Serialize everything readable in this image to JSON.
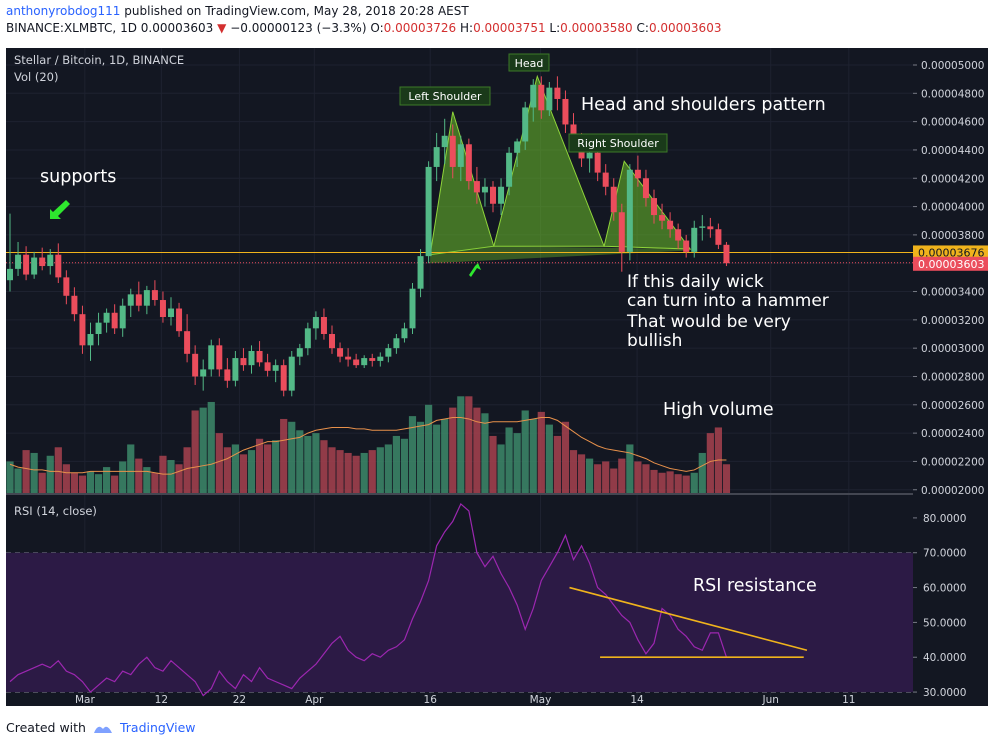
{
  "header": {
    "user": "anthonyrobdog111",
    "published": "published on TradingView.com, May 28, 2018 20:28 AEST",
    "symbol": "BINANCE:XLMBTC, 1D",
    "last": "0.00003603",
    "arrow": "▼",
    "change": "−0.00000123 (−3.3%)",
    "o_label": "O:",
    "o": "0.00003726",
    "h_label": "H:",
    "h": "0.00003751",
    "l_label": "L:",
    "l": "0.00003580",
    "c_label": "C:",
    "c": "0.00003603"
  },
  "footer": {
    "created_with": "Created with",
    "brand": "TradingView"
  },
  "colors": {
    "up": "#53b987",
    "down": "#eb4d5c",
    "vol_up": "#3d8a6a",
    "vol_down": "#a8424f",
    "rsi_band": "#2c1a45",
    "rsi_line": "#9c27b0",
    "hs_fill": "#6cbf2a",
    "level_line": "#f0b31c",
    "annotation_arrow": "#2ee82e",
    "pattern_text": "#ffffff",
    "price_tag_bg": "#f0b31c",
    "last_tag_bg": "#eb4d5c"
  },
  "chart_data": [
    {
      "type": "candlestick",
      "title": "Stellar / Bitcoin, 1D, BINANCE",
      "volume_label": "Vol (20)",
      "x_ticks": [
        "Mar",
        "12",
        "22",
        "Apr",
        "16",
        "May",
        "14",
        "Jun",
        "11"
      ],
      "y_ticks": [
        "0.00005000",
        "0.00004800",
        "0.00004600",
        "0.00004400",
        "0.00004200",
        "0.00004000",
        "0.00003800",
        "0.00003600",
        "0.00003400",
        "0.00003200",
        "0.00003000",
        "0.00002800",
        "0.00002600",
        "0.00002400",
        "0.00002200",
        "0.00002000"
      ],
      "ylim": [
        1.97e-05,
        5.12e-05
      ],
      "support_level": 3.676e-05,
      "support_tag": "0.00003676",
      "last_tag": "0.00003603",
      "last_value": 3.603e-05,
      "volume_ma": [
        2.18e-05,
        2.16e-05,
        2.15e-05,
        2.14e-05,
        2.14e-05,
        2.13e-05,
        2.13e-05,
        2.12e-05,
        2.12e-05,
        2.12e-05,
        2.13e-05,
        2.13e-05,
        2.13e-05,
        2.13e-05,
        2.13e-05,
        2.13e-05,
        2.13e-05,
        2.13e-05,
        2.12e-05,
        2.11e-05,
        2.11e-05,
        2.13e-05,
        2.15e-05,
        2.16e-05,
        2.17e-05,
        2.18e-05,
        2.2e-05,
        2.22e-05,
        2.25e-05,
        2.28e-05,
        2.3e-05,
        2.32e-05,
        2.34e-05,
        2.34e-05,
        2.35e-05,
        2.36e-05,
        2.37e-05,
        2.4e-05,
        2.42e-05,
        2.43e-05,
        2.44e-05,
        2.44e-05,
        2.44e-05,
        2.43e-05,
        2.43e-05,
        2.42e-05,
        2.42e-05,
        2.42e-05,
        2.42e-05,
        2.43e-05,
        2.44e-05,
        2.45e-05,
        2.46e-05,
        2.49e-05,
        2.5e-05,
        2.51e-05,
        2.51e-05,
        2.5e-05,
        2.48e-05,
        2.47e-05,
        2.48e-05,
        2.48e-05,
        2.48e-05,
        2.48e-05,
        2.49e-05,
        2.5e-05,
        2.51e-05,
        2.51e-05,
        2.49e-05,
        2.45e-05,
        2.41e-05,
        2.37e-05,
        2.34e-05,
        2.31e-05,
        2.29e-05,
        2.28e-05,
        2.27e-05,
        2.26e-05,
        2.24e-05,
        2.22e-05,
        2.19e-05,
        2.17e-05,
        2.15e-05,
        2.14e-05,
        2.13e-05,
        2.14e-05,
        2.17e-05,
        2.2e-05,
        2.21e-05,
        2.21e-05
      ],
      "candles": [
        [
          3.48e-05,
          3.95e-05,
          3.4e-05,
          3.56e-05
        ],
        [
          3.56e-05,
          3.75e-05,
          3.51e-05,
          3.66e-05
        ],
        [
          3.66e-05,
          3.72e-05,
          3.48e-05,
          3.52e-05
        ],
        [
          3.52e-05,
          3.68e-05,
          3.49e-05,
          3.64e-05
        ],
        [
          3.64e-05,
          3.71e-05,
          3.55e-05,
          3.58e-05
        ],
        [
          3.58e-05,
          3.7e-05,
          3.52e-05,
          3.66e-05
        ],
        [
          3.66e-05,
          3.74e-05,
          3.46e-05,
          3.5e-05
        ],
        [
          3.5e-05,
          3.55e-05,
          3.31e-05,
          3.37e-05
        ],
        [
          3.37e-05,
          3.43e-05,
          3.19e-05,
          3.24e-05
        ],
        [
          3.24e-05,
          3.3e-05,
          2.96e-05,
          3.02e-05
        ],
        [
          3.02e-05,
          3.18e-05,
          2.91e-05,
          3.1e-05
        ],
        [
          3.1e-05,
          3.25e-05,
          3.02e-05,
          3.18e-05
        ],
        [
          3.18e-05,
          3.28e-05,
          3.11e-05,
          3.25e-05
        ],
        [
          3.25e-05,
          3.31e-05,
          3.1e-05,
          3.14e-05
        ],
        [
          3.14e-05,
          3.35e-05,
          3.08e-05,
          3.3e-05
        ],
        [
          3.3e-05,
          3.42e-05,
          3.22e-05,
          3.38e-05
        ],
        [
          3.38e-05,
          3.47e-05,
          3.26e-05,
          3.3e-05
        ],
        [
          3.3e-05,
          3.44e-05,
          3.24e-05,
          3.41e-05
        ],
        [
          3.41e-05,
          3.48e-05,
          3.3e-05,
          3.34e-05
        ],
        [
          3.34e-05,
          3.4e-05,
          3.18e-05,
          3.22e-05
        ],
        [
          3.22e-05,
          3.36e-05,
          3.16e-05,
          3.28e-05
        ],
        [
          3.28e-05,
          3.32e-05,
          3.08e-05,
          3.12e-05
        ],
        [
          3.12e-05,
          3.24e-05,
          2.9e-05,
          2.96e-05
        ],
        [
          2.96e-05,
          3.02e-05,
          2.74e-05,
          2.8e-05
        ],
        [
          2.8e-05,
          2.92e-05,
          2.7e-05,
          2.85e-05
        ],
        [
          2.85e-05,
          3.06e-05,
          2.8e-05,
          3.02e-05
        ],
        [
          3.02e-05,
          3.07e-05,
          2.8e-05,
          2.85e-05
        ],
        [
          2.85e-05,
          2.93e-05,
          2.72e-05,
          2.77e-05
        ],
        [
          2.77e-05,
          2.98e-05,
          2.73e-05,
          2.93e-05
        ],
        [
          2.93e-05,
          3e-05,
          2.84e-05,
          2.88e-05
        ],
        [
          2.88e-05,
          3.02e-05,
          2.82e-05,
          2.98e-05
        ],
        [
          2.98e-05,
          3.05e-05,
          2.87e-05,
          2.9e-05
        ],
        [
          2.9e-05,
          2.96e-05,
          2.8e-05,
          2.84e-05
        ],
        [
          2.84e-05,
          2.92e-05,
          2.76e-05,
          2.88e-05
        ],
        [
          2.88e-05,
          2.92e-05,
          2.66e-05,
          2.7e-05
        ],
        [
          2.7e-05,
          2.98e-05,
          2.66e-05,
          2.94e-05
        ],
        [
          2.94e-05,
          3.03e-05,
          2.88e-05,
          3e-05
        ],
        [
          3e-05,
          3.18e-05,
          2.95e-05,
          3.14e-05
        ],
        [
          3.14e-05,
          3.26e-05,
          3.06e-05,
          3.22e-05
        ],
        [
          3.22e-05,
          3.28e-05,
          3.06e-05,
          3.1e-05
        ],
        [
          3.1e-05,
          3.16e-05,
          2.96e-05,
          3e-05
        ],
        [
          3e-05,
          3.04e-05,
          2.9e-05,
          2.94e-05
        ],
        [
          2.94e-05,
          3e-05,
          2.87e-05,
          2.92e-05
        ],
        [
          2.92e-05,
          2.96e-05,
          2.86e-05,
          2.88e-05
        ],
        [
          2.88e-05,
          2.95e-05,
          2.86e-05,
          2.93e-05
        ],
        [
          2.93e-05,
          2.96e-05,
          2.87e-05,
          2.91e-05
        ],
        [
          2.91e-05,
          2.97e-05,
          2.87e-05,
          2.94e-05
        ],
        [
          2.94e-05,
          3.03e-05,
          2.9e-05,
          3e-05
        ],
        [
          3e-05,
          3.1e-05,
          2.96e-05,
          3.07e-05
        ],
        [
          3.07e-05,
          3.18e-05,
          3.04e-05,
          3.14e-05
        ],
        [
          3.14e-05,
          3.46e-05,
          3.1e-05,
          3.42e-05
        ],
        [
          3.42e-05,
          3.7e-05,
          3.36e-05,
          3.65e-05
        ],
        [
          3.65e-05,
          4.32e-05,
          3.6e-05,
          4.28e-05
        ],
        [
          4.28e-05,
          4.52e-05,
          4.18e-05,
          4.42e-05
        ],
        [
          4.42e-05,
          4.62e-05,
          4.3e-05,
          4.5e-05
        ],
        [
          4.5e-05,
          4.58e-05,
          4.2e-05,
          4.28e-05
        ],
        [
          4.28e-05,
          4.5e-05,
          4.18e-05,
          4.44e-05
        ],
        [
          4.44e-05,
          4.48e-05,
          4.12e-05,
          4.18e-05
        ],
        [
          4.18e-05,
          4.28e-05,
          4.02e-05,
          4.1e-05
        ],
        [
          4.1e-05,
          4.2e-05,
          4e-05,
          4.14e-05
        ],
        [
          4.14e-05,
          4.18e-05,
          3.96e-05,
          4.02e-05
        ],
        [
          4.02e-05,
          4.2e-05,
          3.94e-05,
          4.14e-05
        ],
        [
          4.14e-05,
          4.42e-05,
          4.08e-05,
          4.38e-05
        ],
        [
          4.38e-05,
          4.48e-05,
          4.28e-05,
          4.46e-05
        ],
        [
          4.46e-05,
          4.74e-05,
          4.4e-05,
          4.7e-05
        ],
        [
          4.7e-05,
          4.9e-05,
          4.6e-05,
          4.86e-05
        ],
        [
          4.86e-05,
          4.92e-05,
          4.62e-05,
          4.68e-05
        ],
        [
          4.68e-05,
          4.88e-05,
          4.64e-05,
          4.84e-05
        ],
        [
          4.84e-05,
          4.92e-05,
          4.68e-05,
          4.76e-05
        ],
        [
          4.76e-05,
          4.82e-05,
          4.52e-05,
          4.58e-05
        ],
        [
          4.58e-05,
          4.66e-05,
          4.4e-05,
          4.46e-05
        ],
        [
          4.46e-05,
          4.52e-05,
          4.28e-05,
          4.34e-05
        ],
        [
          4.34e-05,
          4.42e-05,
          4.24e-05,
          4.38e-05
        ],
        [
          4.38e-05,
          4.44e-05,
          4.18e-05,
          4.24e-05
        ],
        [
          4.24e-05,
          4.3e-05,
          4.08e-05,
          4.14e-05
        ],
        [
          4.14e-05,
          4.2e-05,
          3.9e-05,
          3.96e-05
        ],
        [
          3.96e-05,
          4.02e-05,
          3.54e-05,
          3.68e-05
        ],
        [
          3.68e-05,
          4.3e-05,
          3.62e-05,
          4.26e-05
        ],
        [
          4.26e-05,
          4.36e-05,
          4.14e-05,
          4.2e-05
        ],
        [
          4.2e-05,
          4.26e-05,
          4e-05,
          4.06e-05
        ],
        [
          4.06e-05,
          4.12e-05,
          3.88e-05,
          3.94e-05
        ],
        [
          3.94e-05,
          4.02e-05,
          3.84e-05,
          3.9e-05
        ],
        [
          3.9e-05,
          3.96e-05,
          3.78e-05,
          3.84e-05
        ],
        [
          3.84e-05,
          3.88e-05,
          3.7e-05,
          3.76e-05
        ],
        [
          3.76e-05,
          3.8e-05,
          3.64e-05,
          3.68e-05
        ],
        [
          3.68e-05,
          3.9e-05,
          3.64e-05,
          3.85e-05
        ],
        [
          3.85e-05,
          3.94e-05,
          3.76e-05,
          3.86e-05
        ],
        [
          3.86e-05,
          3.92e-05,
          3.78e-05,
          3.84e-05
        ],
        [
          3.84e-05,
          3.88e-05,
          3.7e-05,
          3.73e-05
        ],
        [
          3.73e-05,
          3.75e-05,
          3.58e-05,
          3.6e-05
        ]
      ],
      "volumes": [
        2.2e-05,
        2.15e-05,
        2.28e-05,
        2.26e-05,
        2.12e-05,
        2.24e-05,
        2.3e-05,
        2.18e-05,
        2.12e-05,
        2.1e-05,
        2.13e-05,
        2.11e-05,
        2.16e-05,
        2.1e-05,
        2.2e-05,
        2.32e-05,
        2.22e-05,
        2.16e-05,
        2.12e-05,
        2.24e-05,
        2.21e-05,
        2.18e-05,
        2.3e-05,
        2.56e-05,
        2.58e-05,
        2.62e-05,
        2.4e-05,
        2.3e-05,
        2.32e-05,
        2.25e-05,
        2.28e-05,
        2.36e-05,
        2.32e-05,
        2.35e-05,
        2.5e-05,
        2.48e-05,
        2.42e-05,
        2.38e-05,
        2.4e-05,
        2.35e-05,
        2.3e-05,
        2.28e-05,
        2.26e-05,
        2.24e-05,
        2.26e-05,
        2.28e-05,
        2.3e-05,
        2.32e-05,
        2.38e-05,
        2.36e-05,
        2.52e-05,
        2.48e-05,
        2.6e-05,
        2.46e-05,
        2.5e-05,
        2.58e-05,
        2.66e-05,
        2.66e-05,
        2.58e-05,
        2.54e-05,
        2.38e-05,
        2.32e-05,
        2.44e-05,
        2.4e-05,
        2.56e-05,
        2.5e-05,
        2.55e-05,
        2.46e-05,
        2.38e-05,
        2.48e-05,
        2.28e-05,
        2.25e-05,
        2.22e-05,
        2.18e-05,
        2.2e-05,
        2.15e-05,
        2.22e-05,
        2.32e-05,
        2.2e-05,
        2.18e-05,
        2.14e-05,
        2.12e-05,
        2.13e-05,
        2.11e-05,
        2.1e-05,
        2.12e-05,
        2.26e-05,
        2.4e-05,
        2.44e-05,
        2.18e-05
      ],
      "annotations": {
        "left_shoulder": "Left Shoulder",
        "head": "Head",
        "right_shoulder": "Right Shoulder",
        "pattern": "Head and shoulders pattern",
        "supports": "supports",
        "wick_line1": "If this daily wick",
        "wick_line2": "can turn into a hammer",
        "wick_line3": "That would be very",
        "wick_line4": "bullish",
        "volume_note": "High volume"
      }
    },
    {
      "type": "line",
      "title": "RSI (14, close)",
      "y_ticks": [
        "80.0000",
        "70.0000",
        "60.0000",
        "50.0000",
        "40.0000",
        "30.0000"
      ],
      "ylim": [
        26,
        86
      ],
      "band": [
        30,
        70
      ],
      "annotation": "RSI resistance",
      "values": [
        33,
        35,
        36,
        37,
        38,
        37,
        39,
        36,
        35,
        33,
        30,
        32,
        34,
        33,
        36,
        35,
        38,
        40,
        37,
        36,
        39,
        37,
        35,
        33,
        29,
        31,
        36,
        33,
        31,
        35,
        33,
        37,
        34,
        33,
        32,
        31,
        34,
        36,
        38,
        41,
        44,
        46,
        42,
        40,
        39,
        41,
        40,
        42,
        43,
        45,
        51,
        56,
        62,
        72,
        76,
        79,
        84,
        82,
        70,
        66,
        69,
        64,
        60,
        55,
        48,
        54,
        62,
        66,
        70,
        75,
        68,
        72,
        67,
        60,
        58,
        55,
        52,
        50,
        45,
        41,
        44,
        54,
        52,
        48,
        46,
        43,
        42,
        47,
        47,
        40
      ]
    }
  ]
}
